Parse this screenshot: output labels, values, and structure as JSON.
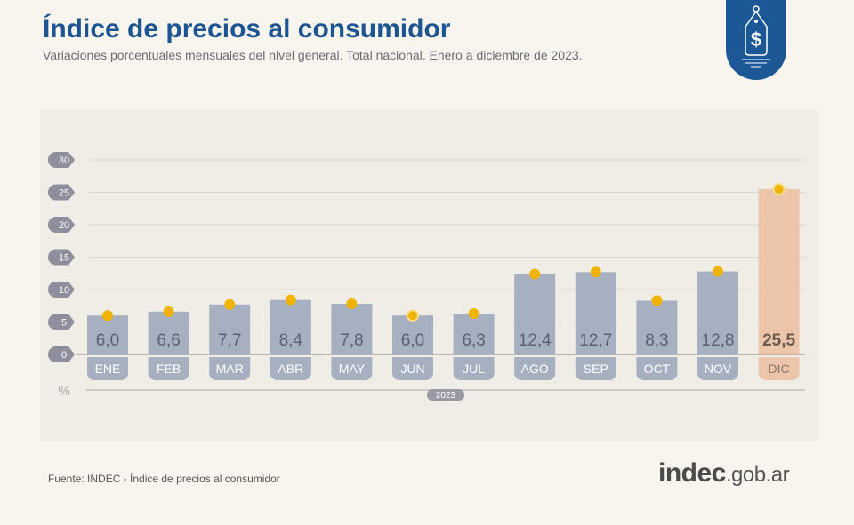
{
  "header": {
    "title": "Índice de precios al consumidor",
    "subtitle": "Variaciones porcentuales mensuales del nivel general. Total nacional. Enero a diciembre de 2023."
  },
  "footer": {
    "source": "Fuente: INDEC - Índice de precios al consumidor",
    "logo_main": "indec",
    "logo_suffix": ".gob.ar"
  },
  "badge_icon": "price-tag-dollar-icon",
  "chart_data": {
    "type": "bar",
    "title": "",
    "xlabel": "",
    "ylabel": "%",
    "x_group_label": "2023",
    "categories": [
      "ENE",
      "FEB",
      "MAR",
      "ABR",
      "MAY",
      "JUN",
      "JUL",
      "AGO",
      "SEP",
      "OCT",
      "NOV",
      "DIC"
    ],
    "values": [
      6.0,
      6.6,
      7.7,
      8.4,
      7.8,
      6.0,
      6.3,
      12.4,
      12.7,
      8.3,
      12.8,
      25.5
    ],
    "data_labels": [
      "6,0",
      "6,6",
      "7,7",
      "8,4",
      "7,8",
      "6,0",
      "6,3",
      "12,4",
      "12,7",
      "8,3",
      "12,8",
      "25,5"
    ],
    "yticks": [
      0,
      5,
      10,
      15,
      20,
      25,
      30
    ],
    "ylim": [
      0,
      30
    ],
    "grid": true,
    "colors": {
      "bar": "#a6b0c0",
      "highlight_bar": "#ecc5ab",
      "marker": "#f0b400",
      "tick_badge": "#8e8e9c",
      "title": "#1d5592"
    }
  }
}
